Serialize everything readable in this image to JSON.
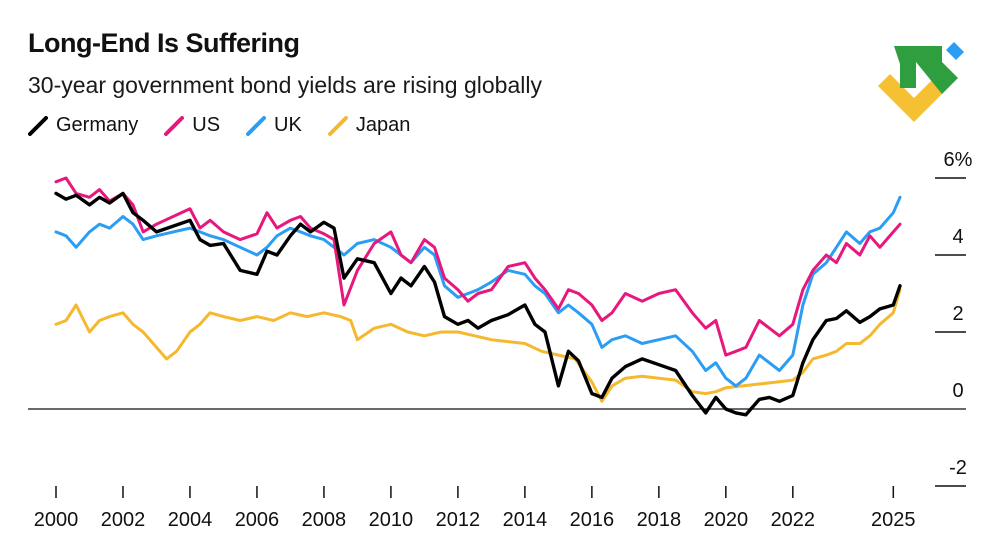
{
  "header": {
    "title": "Long-End Is Suffering",
    "subtitle": "30-year government bond yields are rising globally"
  },
  "legend": [
    {
      "label": "Germany",
      "color": "#000000"
    },
    {
      "label": "US",
      "color": "#e8177d"
    },
    {
      "label": "UK",
      "color": "#2a9df4"
    },
    {
      "label": "Japan",
      "color": "#f5b82e"
    }
  ],
  "logo": {
    "icon": "abstract-arrows-logo",
    "colors": [
      "#2e9e3e",
      "#2a9df4",
      "#f5c132"
    ]
  },
  "chart_data": {
    "type": "line",
    "title": "Long-End Is Suffering",
    "subtitle": "30-year government bond yields are rising globally",
    "xlabel": "",
    "ylabel": "",
    "xlim": [
      2000,
      2025.2
    ],
    "ylim": [
      -2,
      6
    ],
    "x_ticks": [
      2000,
      2002,
      2004,
      2006,
      2008,
      2010,
      2012,
      2014,
      2016,
      2018,
      2020,
      2022,
      2025
    ],
    "y_ticks": [
      -2,
      0,
      2,
      4,
      6
    ],
    "y_tick_labels": [
      "-2",
      "0",
      "2",
      "4",
      "6%"
    ],
    "series": [
      {
        "name": "Germany",
        "color": "#000000",
        "x": [
          2000,
          2000.3,
          2000.6,
          2001,
          2001.3,
          2001.6,
          2002,
          2002.3,
          2002.6,
          2003,
          2003.5,
          2004,
          2004.3,
          2004.6,
          2005,
          2005.5,
          2006,
          2006.3,
          2006.6,
          2007,
          2007.3,
          2007.6,
          2008,
          2008.3,
          2008.6,
          2009,
          2009.5,
          2010,
          2010.3,
          2010.6,
          2011,
          2011.3,
          2011.6,
          2012,
          2012.3,
          2012.6,
          2013,
          2013.5,
          2014,
          2014.3,
          2014.6,
          2015,
          2015.3,
          2015.6,
          2016,
          2016.3,
          2016.6,
          2017,
          2017.5,
          2018,
          2018.5,
          2019,
          2019.4,
          2019.7,
          2020,
          2020.3,
          2020.6,
          2021,
          2021.3,
          2021.6,
          2022,
          2022.3,
          2022.6,
          2023,
          2023.3,
          2023.6,
          2024,
          2024.3,
          2024.6,
          2025,
          2025.2
        ],
        "values": [
          5.6,
          5.45,
          5.55,
          5.3,
          5.5,
          5.35,
          5.6,
          5.1,
          4.9,
          4.6,
          4.75,
          4.9,
          4.4,
          4.25,
          4.3,
          3.6,
          3.5,
          4.1,
          4.0,
          4.5,
          4.8,
          4.6,
          4.85,
          4.7,
          3.4,
          3.9,
          3.8,
          3.0,
          3.4,
          3.2,
          3.7,
          3.3,
          2.4,
          2.2,
          2.3,
          2.1,
          2.3,
          2.45,
          2.7,
          2.2,
          2.0,
          0.6,
          1.5,
          1.25,
          0.4,
          0.3,
          0.8,
          1.1,
          1.3,
          1.15,
          1.0,
          0.35,
          -0.1,
          0.3,
          0.0,
          -0.1,
          -0.15,
          0.25,
          0.3,
          0.2,
          0.35,
          1.2,
          1.8,
          2.3,
          2.35,
          2.55,
          2.25,
          2.4,
          2.6,
          2.7,
          3.2
        ]
      },
      {
        "name": "US",
        "color": "#e8177d",
        "x": [
          2000,
          2000.3,
          2000.6,
          2001,
          2001.3,
          2001.6,
          2002,
          2002.3,
          2002.6,
          2003,
          2003.5,
          2004,
          2004.3,
          2004.6,
          2005,
          2005.5,
          2006,
          2006.3,
          2006.6,
          2007,
          2007.3,
          2007.6,
          2008,
          2008.3,
          2008.6,
          2009,
          2009.5,
          2010,
          2010.3,
          2010.6,
          2011,
          2011.3,
          2011.6,
          2012,
          2012.3,
          2012.6,
          2013,
          2013.5,
          2014,
          2014.3,
          2014.6,
          2015,
          2015.3,
          2015.6,
          2016,
          2016.3,
          2016.6,
          2017,
          2017.5,
          2018,
          2018.5,
          2019,
          2019.4,
          2019.7,
          2020,
          2020.3,
          2020.6,
          2021,
          2021.3,
          2021.6,
          2022,
          2022.3,
          2022.6,
          2023,
          2023.3,
          2023.6,
          2024,
          2024.3,
          2024.6,
          2025,
          2025.2
        ],
        "values": [
          5.9,
          6.0,
          5.6,
          5.5,
          5.7,
          5.4,
          5.6,
          5.3,
          4.6,
          4.8,
          5.0,
          5.2,
          4.7,
          4.9,
          4.6,
          4.4,
          4.55,
          5.1,
          4.7,
          4.9,
          5.0,
          4.7,
          4.55,
          4.4,
          2.7,
          3.6,
          4.3,
          4.6,
          4.0,
          3.8,
          4.4,
          4.2,
          3.4,
          3.1,
          2.8,
          3.0,
          3.1,
          3.7,
          3.8,
          3.4,
          3.1,
          2.6,
          3.1,
          3.0,
          2.7,
          2.3,
          2.5,
          3.0,
          2.8,
          3.0,
          3.1,
          2.5,
          2.1,
          2.3,
          1.4,
          1.5,
          1.6,
          2.3,
          2.1,
          1.9,
          2.2,
          3.1,
          3.6,
          4.0,
          3.8,
          4.3,
          4.0,
          4.5,
          4.2,
          4.6,
          4.8
        ]
      },
      {
        "name": "UK",
        "color": "#2a9df4",
        "x": [
          2000,
          2000.3,
          2000.6,
          2001,
          2001.3,
          2001.6,
          2002,
          2002.3,
          2002.6,
          2003,
          2003.5,
          2004,
          2004.3,
          2004.6,
          2005,
          2005.5,
          2006,
          2006.3,
          2006.6,
          2007,
          2007.3,
          2007.6,
          2008,
          2008.3,
          2008.6,
          2009,
          2009.5,
          2010,
          2010.3,
          2010.6,
          2011,
          2011.3,
          2011.6,
          2012,
          2012.3,
          2012.6,
          2013,
          2013.5,
          2014,
          2014.3,
          2014.6,
          2015,
          2015.3,
          2015.6,
          2016,
          2016.3,
          2016.6,
          2017,
          2017.5,
          2018,
          2018.5,
          2019,
          2019.4,
          2019.7,
          2020,
          2020.3,
          2020.6,
          2021,
          2021.3,
          2021.6,
          2022,
          2022.3,
          2022.6,
          2023,
          2023.3,
          2023.6,
          2024,
          2024.3,
          2024.6,
          2025,
          2025.2
        ],
        "values": [
          4.6,
          4.5,
          4.2,
          4.6,
          4.8,
          4.7,
          5.0,
          4.8,
          4.4,
          4.5,
          4.6,
          4.7,
          4.6,
          4.5,
          4.4,
          4.2,
          4.0,
          4.2,
          4.5,
          4.7,
          4.6,
          4.5,
          4.4,
          4.2,
          4.0,
          4.3,
          4.4,
          4.2,
          4.0,
          3.8,
          4.2,
          4.0,
          3.2,
          2.9,
          3.0,
          3.1,
          3.3,
          3.6,
          3.5,
          3.2,
          3.0,
          2.5,
          2.7,
          2.5,
          2.2,
          1.6,
          1.8,
          1.9,
          1.7,
          1.8,
          1.9,
          1.5,
          1.0,
          1.2,
          0.8,
          0.6,
          0.8,
          1.4,
          1.2,
          1.0,
          1.4,
          2.7,
          3.5,
          3.8,
          4.2,
          4.6,
          4.3,
          4.6,
          4.7,
          5.1,
          5.5
        ]
      },
      {
        "name": "Japan",
        "color": "#f5b82e",
        "x": [
          2000,
          2000.3,
          2000.6,
          2001,
          2001.3,
          2001.6,
          2002,
          2002.3,
          2002.6,
          2003,
          2003.3,
          2003.6,
          2004,
          2004.3,
          2004.6,
          2005,
          2005.5,
          2006,
          2006.5,
          2007,
          2007.5,
          2008,
          2008.5,
          2008.8,
          2009,
          2009.5,
          2010,
          2010.5,
          2011,
          2011.5,
          2012,
          2012.5,
          2013,
          2013.5,
          2014,
          2014.5,
          2015,
          2015.5,
          2016,
          2016.3,
          2016.6,
          2017,
          2017.5,
          2018,
          2018.5,
          2019,
          2019.4,
          2019.7,
          2020,
          2020.5,
          2021,
          2021.5,
          2022,
          2022.3,
          2022.6,
          2023,
          2023.3,
          2023.6,
          2024,
          2024.3,
          2024.6,
          2025,
          2025.2
        ],
        "values": [
          2.2,
          2.3,
          2.7,
          2.0,
          2.3,
          2.4,
          2.5,
          2.2,
          2.0,
          1.6,
          1.3,
          1.5,
          2.0,
          2.2,
          2.5,
          2.4,
          2.3,
          2.4,
          2.3,
          2.5,
          2.4,
          2.5,
          2.4,
          2.3,
          1.8,
          2.1,
          2.2,
          2.0,
          1.9,
          2.0,
          2.0,
          1.9,
          1.8,
          1.75,
          1.7,
          1.5,
          1.4,
          1.3,
          0.7,
          0.2,
          0.6,
          0.8,
          0.85,
          0.8,
          0.75,
          0.45,
          0.4,
          0.45,
          0.55,
          0.6,
          0.65,
          0.7,
          0.75,
          0.95,
          1.3,
          1.4,
          1.5,
          1.7,
          1.7,
          1.9,
          2.2,
          2.5,
          3.1
        ]
      }
    ]
  }
}
